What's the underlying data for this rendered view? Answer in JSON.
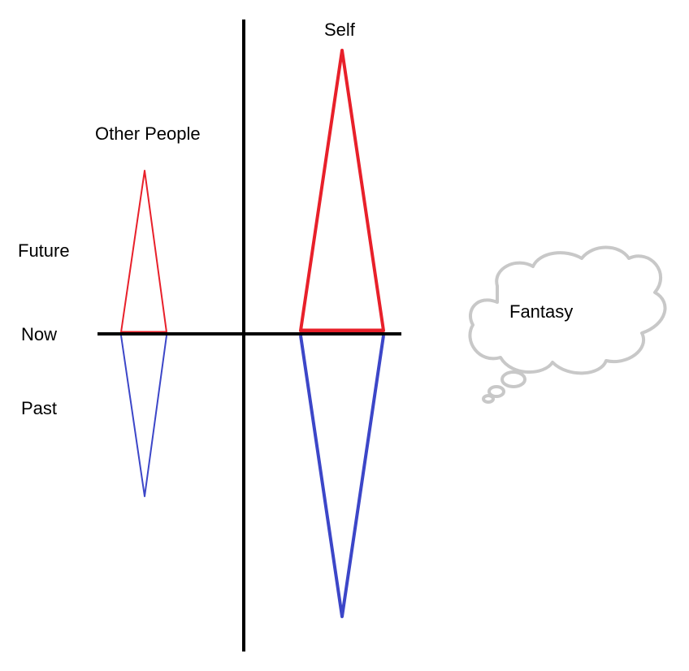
{
  "labels": {
    "self": "Self",
    "other_people": "Other People",
    "future": "Future",
    "now": "Now",
    "past": "Past",
    "fantasy": "Fantasy"
  },
  "colors": {
    "axis": "#000000",
    "future": "#e8202a",
    "past": "#3c46c8",
    "cloud": "#c8c8c8",
    "background": "#ffffff"
  }
}
